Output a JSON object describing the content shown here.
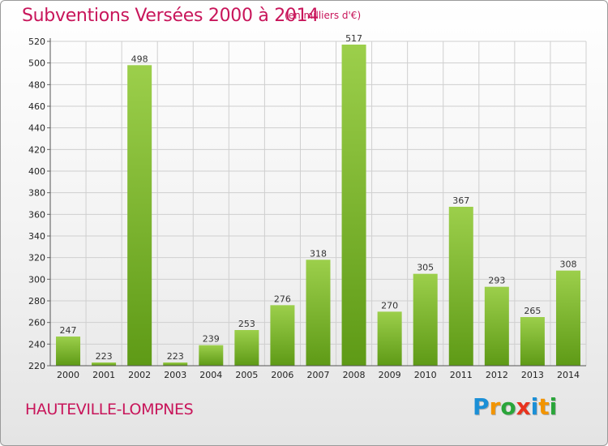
{
  "header": {
    "title": "Subventions Versées 2000 à 2014",
    "unit_note": "(en milliers d'€)"
  },
  "footer": {
    "commune": "HAUTEVILLE-LOMPNES",
    "logo_text": "Proxiti",
    "logo_letters": [
      {
        "char": "P",
        "color": "#1b8fd6"
      },
      {
        "char": "r",
        "color": "#f29400"
      },
      {
        "char": "o",
        "color": "#2aa53a"
      },
      {
        "char": "x",
        "color": "#e8331e"
      },
      {
        "char": "i",
        "color": "#1b8fd6"
      },
      {
        "char": "t",
        "color": "#f29400"
      },
      {
        "char": "i",
        "color": "#2aa53a"
      }
    ]
  },
  "colors": {
    "title": "#c8155a",
    "bar_light": "#9ccf4b",
    "bar_dark": "#5e9a16",
    "grid": "#cfcfcf",
    "axis_text": "#222222"
  },
  "chart_data": {
    "type": "bar",
    "title": "Subventions Versées 2000 à 2014",
    "subtitle": "(en milliers d'€)",
    "categories": [
      "2000",
      "2001",
      "2002",
      "2003",
      "2004",
      "2005",
      "2006",
      "2007",
      "2008",
      "2009",
      "2010",
      "2011",
      "2012",
      "2013",
      "2014"
    ],
    "values": [
      247,
      223,
      498,
      223,
      239,
      253,
      276,
      318,
      517,
      270,
      305,
      367,
      293,
      265,
      308
    ],
    "ylim": [
      220,
      520
    ],
    "yticks": [
      220,
      240,
      260,
      280,
      300,
      320,
      340,
      360,
      380,
      400,
      420,
      440,
      460,
      480,
      500,
      520
    ],
    "grid": true,
    "data_labels": true
  }
}
